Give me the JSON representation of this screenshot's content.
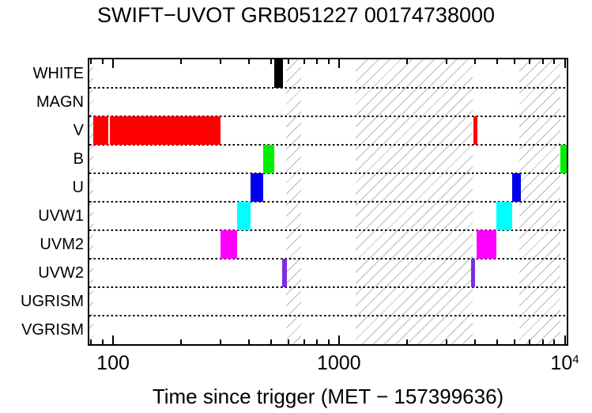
{
  "chart_data": {
    "type": "bar",
    "variant": "horizontal-interval-timeline",
    "title": "SWIFT−UVOT GRB051227 00174738000",
    "xlabel": "Time since trigger (MET − 157399636)",
    "x_scale": "log",
    "x_range": [
      78.5,
      10200
    ],
    "grid": "dotted horizontal row separators",
    "legend_position": "none",
    "rows": [
      "WHITE",
      "MAGN",
      "V",
      "B",
      "U",
      "UVW1",
      "UVM2",
      "UVW2",
      "UGRISM",
      "VGRISM"
    ],
    "colors": {
      "WHITE": "#000000",
      "V": "#ff0000",
      "B": "#00ee00",
      "U": "#0000ee",
      "UVW1": "#00ffff",
      "UVM2": "#ff00ff",
      "UVW2": "#7b2fde"
    },
    "x_major_ticks": [
      {
        "value": 100,
        "base": "100",
        "sup": ""
      },
      {
        "value": 1000,
        "base": "1000",
        "sup": ""
      },
      {
        "value": 10000,
        "base": "10",
        "sup": "4"
      }
    ],
    "x_minor_ticks": [
      80,
      90,
      200,
      300,
      400,
      500,
      600,
      700,
      800,
      900,
      2000,
      3000,
      4000,
      5000,
      6000,
      7000,
      8000,
      9000
    ],
    "intervals": [
      {
        "row": "WHITE",
        "start": 517,
        "end": 565
      },
      {
        "row": "V",
        "start": 82,
        "end": 95
      },
      {
        "row": "V",
        "start": 97,
        "end": 299
      },
      {
        "row": "V",
        "start": 3930,
        "end": 4090
      },
      {
        "row": "B",
        "start": 461,
        "end": 516
      },
      {
        "row": "B",
        "start": 9550,
        "end": 10200
      },
      {
        "row": "U",
        "start": 406,
        "end": 461
      },
      {
        "row": "U",
        "start": 5830,
        "end": 6370
      },
      {
        "row": "UVW1",
        "start": 354,
        "end": 406
      },
      {
        "row": "UVW1",
        "start": 4970,
        "end": 5830
      },
      {
        "row": "UVM2",
        "start": 299,
        "end": 354
      },
      {
        "row": "UVM2",
        "start": 4060,
        "end": 4970
      },
      {
        "row": "UVW2",
        "start": 561,
        "end": 589
      },
      {
        "row": "UVW2",
        "start": 3840,
        "end": 3990
      }
    ],
    "hatched_regions": [
      [
        78.5,
        81.8
      ],
      [
        583,
        678
      ],
      [
        1185,
        3900
      ],
      [
        6270,
        9530
      ]
    ]
  }
}
